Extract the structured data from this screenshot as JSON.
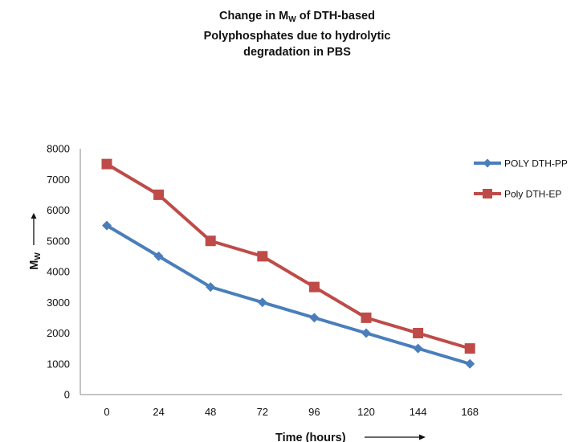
{
  "chart_data": {
    "type": "line",
    "title_line1_pre": "Change in M",
    "title_line1_sub": "W",
    "title_line1_post": " of DTH-based",
    "title_line2": "Polyphosphates due to hydrolytic",
    "title_line3": "degradation in PBS",
    "xlabel": "Time (hours)",
    "ylabel_main": "M",
    "ylabel_sub": "W",
    "categories": [
      "0",
      "24",
      "48",
      "72",
      "96",
      "120",
      "144",
      "168"
    ],
    "ylim": [
      0,
      8000
    ],
    "yticks": [
      0,
      1000,
      2000,
      3000,
      4000,
      5000,
      6000,
      7000,
      8000
    ],
    "grid": false,
    "legend_position": "right",
    "series": [
      {
        "name": "POLY DTH-PP",
        "values": [
          5500,
          4500,
          3500,
          3000,
          2500,
          2000,
          1500,
          1000
        ],
        "color": "#4a7ebb",
        "marker": "diamond"
      },
      {
        "name": "Poly DTH-EP",
        "values": [
          7500,
          6500,
          5000,
          4500,
          3500,
          2500,
          2000,
          1500
        ],
        "color": "#be4b48",
        "marker": "square"
      }
    ]
  }
}
